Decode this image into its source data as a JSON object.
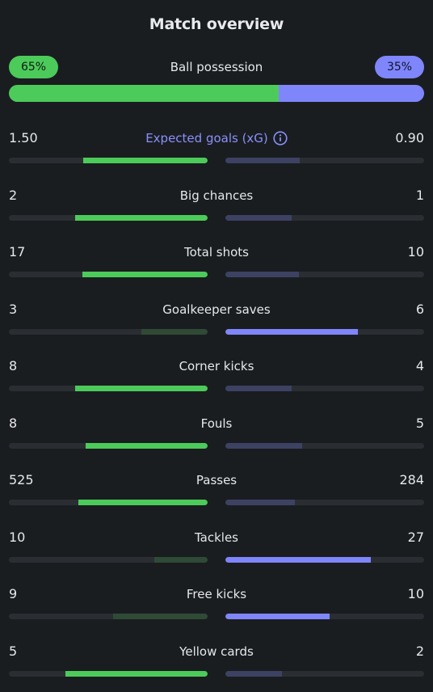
{
  "title": "Match overview",
  "possession": {
    "label": "Ball possession",
    "home_label": "65%",
    "away_label": "35%",
    "home": 65,
    "away": 35,
    "home_color": "#4ccb5a",
    "away_color": "#7f86fb"
  },
  "stats": [
    {
      "name": "Expected goals (xG)",
      "home_label": "1.50",
      "away_label": "0.90",
      "home": 1.5,
      "away": 0.9,
      "accent": true,
      "icon": "info-icon"
    },
    {
      "name": "Big chances",
      "home_label": "2",
      "away_label": "1",
      "home": 2,
      "away": 1
    },
    {
      "name": "Total shots",
      "home_label": "17",
      "away_label": "10",
      "home": 17,
      "away": 10
    },
    {
      "name": "Goalkeeper saves",
      "home_label": "3",
      "away_label": "6",
      "home": 3,
      "away": 6
    },
    {
      "name": "Corner kicks",
      "home_label": "8",
      "away_label": "4",
      "home": 8,
      "away": 4
    },
    {
      "name": "Fouls",
      "home_label": "8",
      "away_label": "5",
      "home": 8,
      "away": 5
    },
    {
      "name": "Passes",
      "home_label": "525",
      "away_label": "284",
      "home": 525,
      "away": 284
    },
    {
      "name": "Tackles",
      "home_label": "10",
      "away_label": "27",
      "home": 10,
      "away": 27
    },
    {
      "name": "Free kicks",
      "home_label": "9",
      "away_label": "10",
      "home": 9,
      "away": 10
    },
    {
      "name": "Yellow cards",
      "home_label": "5",
      "away_label": "2",
      "home": 5,
      "away": 2
    }
  ]
}
